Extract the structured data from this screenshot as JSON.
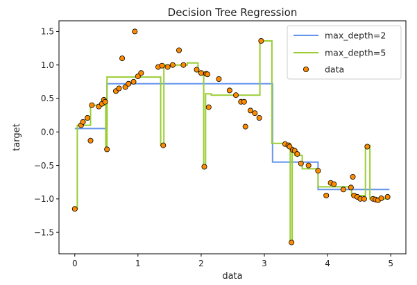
{
  "chart_data": {
    "type": "line",
    "title": "Decision Tree Regression",
    "xlabel": "data",
    "ylabel": "target",
    "xlim": [
      -0.25,
      5.24
    ],
    "ylim": [
      -1.82,
      1.66
    ],
    "x_ticks": [
      0,
      1,
      2,
      3,
      4,
      5
    ],
    "x_tick_labels": [
      "0",
      "1",
      "2",
      "3",
      "4",
      "5"
    ],
    "y_ticks": [
      -1.5,
      -1.0,
      -0.5,
      0.0,
      0.5,
      1.0,
      1.5
    ],
    "y_tick_labels": [
      "−1.5",
      "−1.0",
      "−0.5",
      "0.0",
      "0.5",
      "1.0",
      "1.5"
    ],
    "grid": false,
    "legend_position": "top-right",
    "series": [
      {
        "name": "max_depth=2",
        "kind": "step-line",
        "color": "#6495ed",
        "points": [
          [
            0.0,
            0.05
          ],
          [
            0.51,
            0.05
          ],
          [
            0.51,
            0.72
          ],
          [
            3.13,
            0.72
          ],
          [
            3.13,
            -0.45
          ],
          [
            3.85,
            -0.45
          ],
          [
            3.85,
            -0.86
          ],
          [
            4.98,
            -0.86
          ]
        ]
      },
      {
        "name": "max_depth=5",
        "kind": "step-line",
        "color": "#9acd32",
        "points": [
          [
            0.0,
            -1.15
          ],
          [
            0.04,
            -1.15
          ],
          [
            0.04,
            0.1
          ],
          [
            0.25,
            0.1
          ],
          [
            0.25,
            0.4
          ],
          [
            0.49,
            0.4
          ],
          [
            0.49,
            -0.26
          ],
          [
            0.51,
            -0.26
          ],
          [
            0.51,
            0.82
          ],
          [
            1.36,
            0.82
          ],
          [
            1.36,
            -0.2
          ],
          [
            1.41,
            -0.2
          ],
          [
            1.41,
            1.0
          ],
          [
            1.78,
            1.0
          ],
          [
            1.78,
            1.03
          ],
          [
            1.95,
            1.03
          ],
          [
            1.95,
            0.9
          ],
          [
            2.04,
            0.9
          ],
          [
            2.04,
            -0.52
          ],
          [
            2.07,
            -0.52
          ],
          [
            2.07,
            0.57
          ],
          [
            2.16,
            0.57
          ],
          [
            2.16,
            0.55
          ],
          [
            2.93,
            0.55
          ],
          [
            2.93,
            1.36
          ],
          [
            3.12,
            1.36
          ],
          [
            3.12,
            -0.17
          ],
          [
            3.41,
            -0.17
          ],
          [
            3.41,
            -1.65
          ],
          [
            3.44,
            -1.65
          ],
          [
            3.44,
            -0.25
          ],
          [
            3.48,
            -0.25
          ],
          [
            3.48,
            -0.35
          ],
          [
            3.6,
            -0.35
          ],
          [
            3.6,
            -0.55
          ],
          [
            3.85,
            -0.55
          ],
          [
            3.85,
            -0.82
          ],
          [
            4.38,
            -0.82
          ],
          [
            4.38,
            -0.95
          ],
          [
            4.6,
            -0.95
          ],
          [
            4.6,
            -0.2
          ],
          [
            4.67,
            -0.2
          ],
          [
            4.67,
            -1.0
          ],
          [
            4.98,
            -1.0
          ]
        ]
      },
      {
        "name": "data",
        "kind": "scatter",
        "color": "#ff8c00",
        "edge_color": "#000000",
        "x": [
          0.0,
          0.1,
          0.13,
          0.2,
          0.25,
          0.27,
          0.38,
          0.43,
          0.46,
          0.48,
          0.51,
          0.65,
          0.7,
          0.75,
          0.8,
          0.85,
          0.93,
          0.95,
          1.0,
          1.05,
          1.32,
          1.38,
          1.4,
          1.47,
          1.55,
          1.65,
          1.72,
          1.93,
          2.0,
          2.05,
          2.08,
          2.1,
          2.12,
          2.28,
          2.45,
          2.55,
          2.63,
          2.68,
          2.7,
          2.78,
          2.85,
          2.92,
          2.95,
          3.33,
          3.38,
          3.4,
          3.43,
          3.45,
          3.48,
          3.52,
          3.58,
          3.7,
          3.85,
          3.98,
          4.05,
          4.1,
          4.25,
          4.37,
          4.4,
          4.42,
          4.47,
          4.52,
          4.58,
          4.63,
          4.72,
          4.76,
          4.8,
          4.85,
          4.95
        ],
        "y": [
          -1.15,
          0.1,
          0.15,
          0.21,
          -0.13,
          0.4,
          0.38,
          0.42,
          0.48,
          0.45,
          -0.26,
          0.61,
          0.65,
          1.1,
          0.67,
          0.72,
          0.75,
          1.5,
          0.83,
          0.88,
          0.97,
          0.99,
          -0.2,
          0.97,
          1.0,
          1.22,
          1.0,
          0.93,
          0.88,
          -0.52,
          0.87,
          0.86,
          0.37,
          0.79,
          0.62,
          0.55,
          0.45,
          0.45,
          0.08,
          0.32,
          0.28,
          0.21,
          1.36,
          -0.18,
          -0.2,
          -0.22,
          -1.65,
          -0.27,
          -0.28,
          -0.33,
          -0.47,
          -0.5,
          -0.58,
          -0.95,
          -0.76,
          -0.78,
          -0.86,
          -0.83,
          -0.67,
          -0.95,
          -0.97,
          -1.0,
          -1.0,
          -0.22,
          -1.0,
          -1.01,
          -1.02,
          -0.99,
          -0.97
        ]
      }
    ]
  }
}
